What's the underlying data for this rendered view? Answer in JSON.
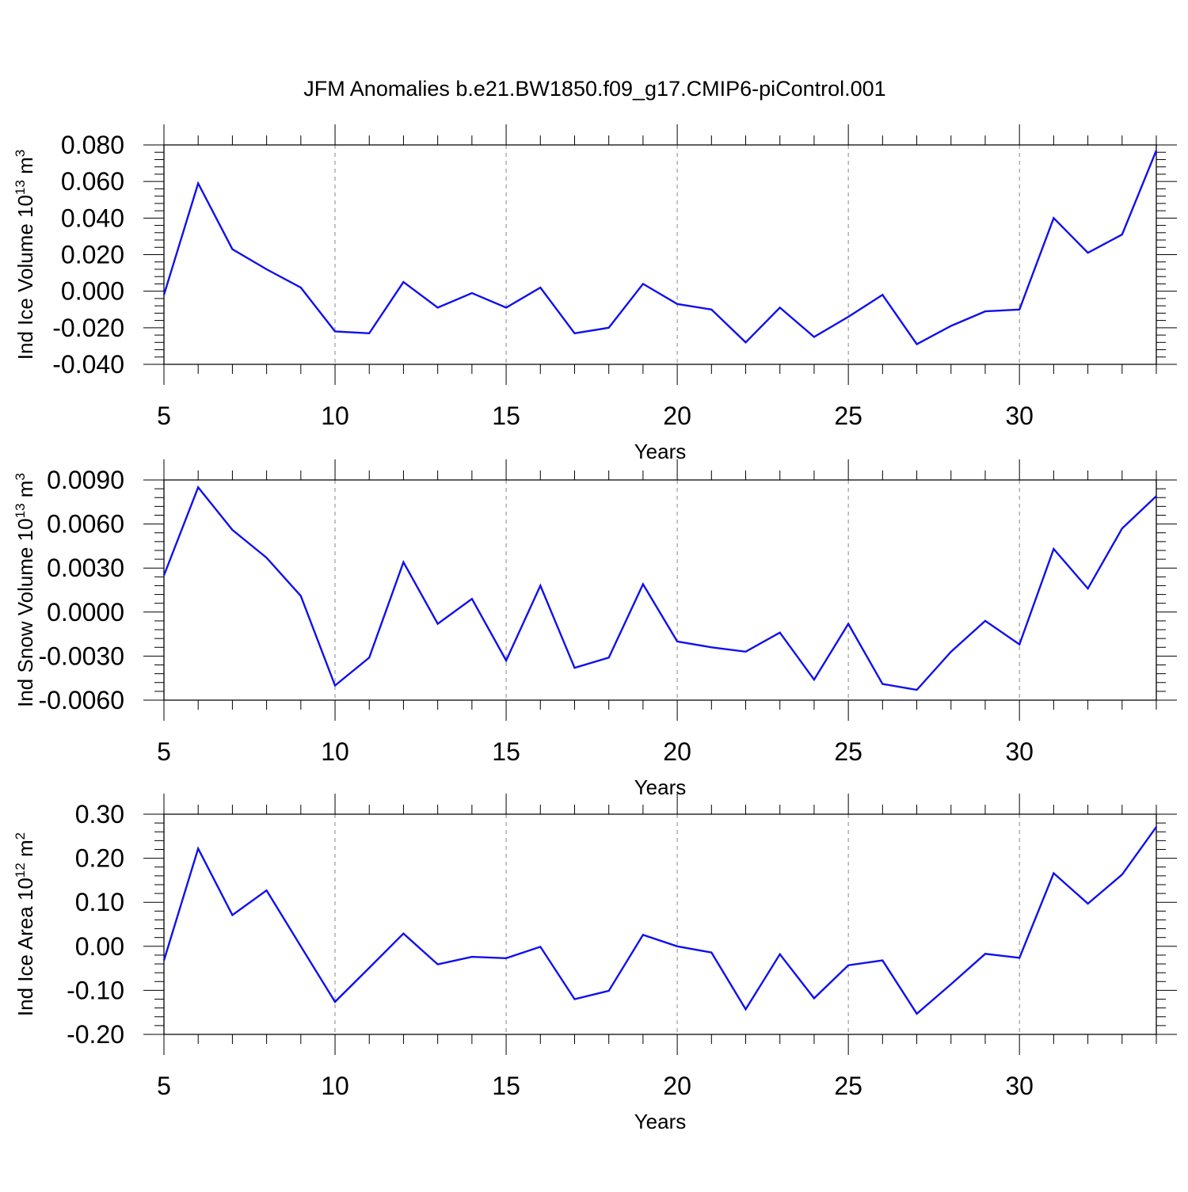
{
  "title": "JFM Anomalies b.e21.BW1850.f09_g17.CMIP6-piControl.001",
  "colors": {
    "series": "#1010ee",
    "grid": "#888888",
    "axis": "#000000"
  },
  "chart_data": [
    {
      "type": "line",
      "ylabel_main": "Ind Ice Volume 10",
      "ylabel_sup": "13",
      "ylabel_unit": "m",
      "ylabel_unit_sup": "3",
      "xlabel": "Years",
      "xlim": [
        5,
        34
      ],
      "ylim": [
        -0.04,
        0.08
      ],
      "xticks": [
        5,
        10,
        15,
        20,
        25,
        30
      ],
      "xtick_labels": [
        "5",
        "10",
        "15",
        "20",
        "25",
        "30"
      ],
      "yticks": [
        -0.04,
        -0.02,
        0.0,
        0.02,
        0.04,
        0.06,
        0.08
      ],
      "ytick_labels": [
        "-0.040",
        "-0.020",
        "0.000",
        "0.020",
        "0.040",
        "0.060",
        "0.080"
      ],
      "grid": "vertical dashed at major x ticks",
      "x": [
        5,
        6,
        7,
        8,
        9,
        10,
        11,
        12,
        13,
        14,
        15,
        16,
        17,
        18,
        19,
        20,
        21,
        22,
        23,
        24,
        25,
        26,
        27,
        28,
        29,
        30,
        31,
        32,
        33,
        34
      ],
      "values": [
        -0.002,
        0.059,
        0.023,
        0.012,
        0.002,
        -0.022,
        -0.023,
        0.005,
        -0.009,
        -0.001,
        -0.009,
        0.002,
        -0.023,
        -0.02,
        0.004,
        -0.007,
        -0.01,
        -0.028,
        -0.009,
        -0.025,
        -0.014,
        -0.002,
        -0.029,
        -0.019,
        -0.011,
        -0.01,
        0.04,
        0.021,
        0.031,
        0.077
      ]
    },
    {
      "type": "line",
      "ylabel_main": "Ind Snow Volume 10",
      "ylabel_sup": "13",
      "ylabel_unit": "m",
      "ylabel_unit_sup": "3",
      "xlabel": "Years",
      "xlim": [
        5,
        34
      ],
      "ylim": [
        -0.006,
        0.009
      ],
      "xticks": [
        5,
        10,
        15,
        20,
        25,
        30
      ],
      "xtick_labels": [
        "5",
        "10",
        "15",
        "20",
        "25",
        "30"
      ],
      "yticks": [
        -0.006,
        -0.003,
        0.0,
        0.003,
        0.006,
        0.009
      ],
      "ytick_labels": [
        "-0.0060",
        "-0.0030",
        "0.0000",
        "0.0030",
        "0.0060",
        "0.0090"
      ],
      "grid": "vertical dashed at major x ticks",
      "x": [
        5,
        6,
        7,
        8,
        9,
        10,
        11,
        12,
        13,
        14,
        15,
        16,
        17,
        18,
        19,
        20,
        21,
        22,
        23,
        24,
        25,
        26,
        27,
        28,
        29,
        30,
        31,
        32,
        33,
        34
      ],
      "values": [
        0.0025,
        0.0085,
        0.0056,
        0.0037,
        0.0011,
        -0.005,
        -0.0031,
        0.0034,
        -0.0008,
        0.0009,
        -0.0033,
        0.0018,
        -0.0038,
        -0.0031,
        0.0019,
        -0.002,
        -0.0024,
        -0.0027,
        -0.0014,
        -0.0046,
        -0.0008,
        -0.0049,
        -0.0053,
        -0.0027,
        -0.0006,
        -0.0022,
        0.0043,
        0.0016,
        0.0057,
        0.0079
      ]
    },
    {
      "type": "line",
      "ylabel_main": "Ind Ice Area 10",
      "ylabel_sup": "12",
      "ylabel_unit": "m",
      "ylabel_unit_sup": "2",
      "xlabel": "Years",
      "xlim": [
        5,
        34
      ],
      "ylim": [
        -0.2,
        0.3
      ],
      "xticks": [
        5,
        10,
        15,
        20,
        25,
        30
      ],
      "xtick_labels": [
        "5",
        "10",
        "15",
        "20",
        "25",
        "30"
      ],
      "yticks": [
        -0.2,
        -0.1,
        0.0,
        0.1,
        0.2,
        0.3
      ],
      "ytick_labels": [
        "-0.20",
        "-0.10",
        "0.00",
        "0.10",
        "0.20",
        "0.30"
      ],
      "grid": "vertical dashed at major x ticks",
      "x": [
        5,
        6,
        7,
        8,
        9,
        10,
        11,
        12,
        13,
        14,
        15,
        16,
        17,
        18,
        19,
        20,
        21,
        22,
        23,
        24,
        25,
        26,
        27,
        28,
        29,
        30,
        31,
        32,
        33,
        34
      ],
      "values": [
        -0.032,
        0.222,
        0.071,
        0.127,
        0.0,
        -0.126,
        -0.049,
        0.029,
        -0.041,
        -0.024,
        -0.027,
        -0.001,
        -0.12,
        -0.101,
        0.026,
        0.0,
        -0.014,
        -0.143,
        -0.018,
        -0.118,
        -0.043,
        -0.032,
        -0.153,
        -0.086,
        -0.017,
        -0.026,
        0.166,
        0.097,
        0.163,
        0.271
      ]
    }
  ]
}
